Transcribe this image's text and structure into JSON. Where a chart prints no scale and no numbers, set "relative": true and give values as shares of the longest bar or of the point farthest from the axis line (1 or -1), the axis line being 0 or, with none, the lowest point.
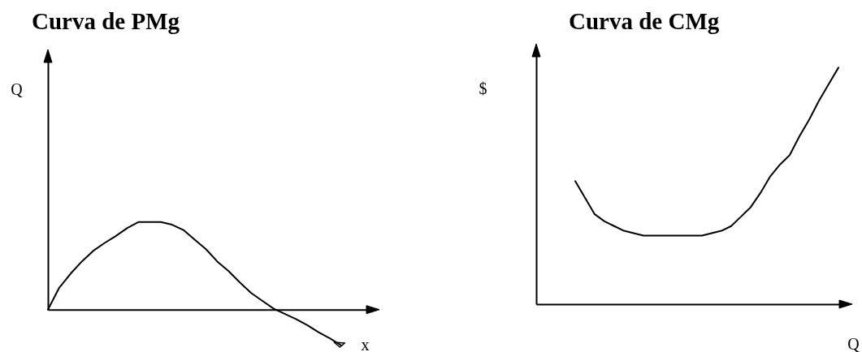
{
  "chart_data": [
    {
      "type": "line",
      "title": "Curva de PMg",
      "xlabel": "x",
      "ylabel": "Q",
      "relative": true,
      "color": "#000000",
      "categories": [
        null,
        null,
        null,
        null,
        null,
        null,
        null,
        null,
        null,
        null,
        null,
        null,
        null,
        null,
        null,
        null,
        null,
        null,
        null,
        null,
        null,
        null,
        null,
        null,
        null,
        null,
        null,
        null,
        null,
        null
      ],
      "values": [
        0,
        0.25,
        0.41,
        0.55,
        0.67,
        0.76,
        0.84,
        0.93,
        1,
        1,
        1,
        0.97,
        0.91,
        0.8,
        0.69,
        0.55,
        0.44,
        0.31,
        0.19,
        0.1,
        0.01,
        -0.05,
        -0.11,
        -0.18,
        -0.26,
        -0.33,
        -0.41,
        null,
        null,
        null
      ]
    },
    {
      "type": "line",
      "title": "Curva de CMg",
      "xlabel": "Q",
      "ylabel": "$",
      "relative": true,
      "color": "#000000",
      "categories": [
        null,
        null,
        null,
        null,
        null,
        null,
        null,
        null,
        null,
        null,
        null,
        null,
        null,
        null,
        null,
        null,
        null,
        null,
        null,
        null,
        null,
        null,
        null,
        null,
        null,
        null,
        null,
        null,
        null,
        null,
        null,
        null,
        null
      ],
      "values": [
        null,
        null,
        null,
        null,
        0.52,
        0.45,
        0.38,
        0.35,
        0.33,
        0.31,
        0.3,
        0.29,
        0.29,
        0.29,
        0.29,
        0.29,
        0.29,
        0.29,
        0.3,
        0.31,
        0.33,
        0.37,
        0.41,
        0.47,
        0.54,
        0.59,
        0.63,
        0.71,
        0.78,
        0.86,
        0.93,
        1,
        null
      ]
    }
  ]
}
